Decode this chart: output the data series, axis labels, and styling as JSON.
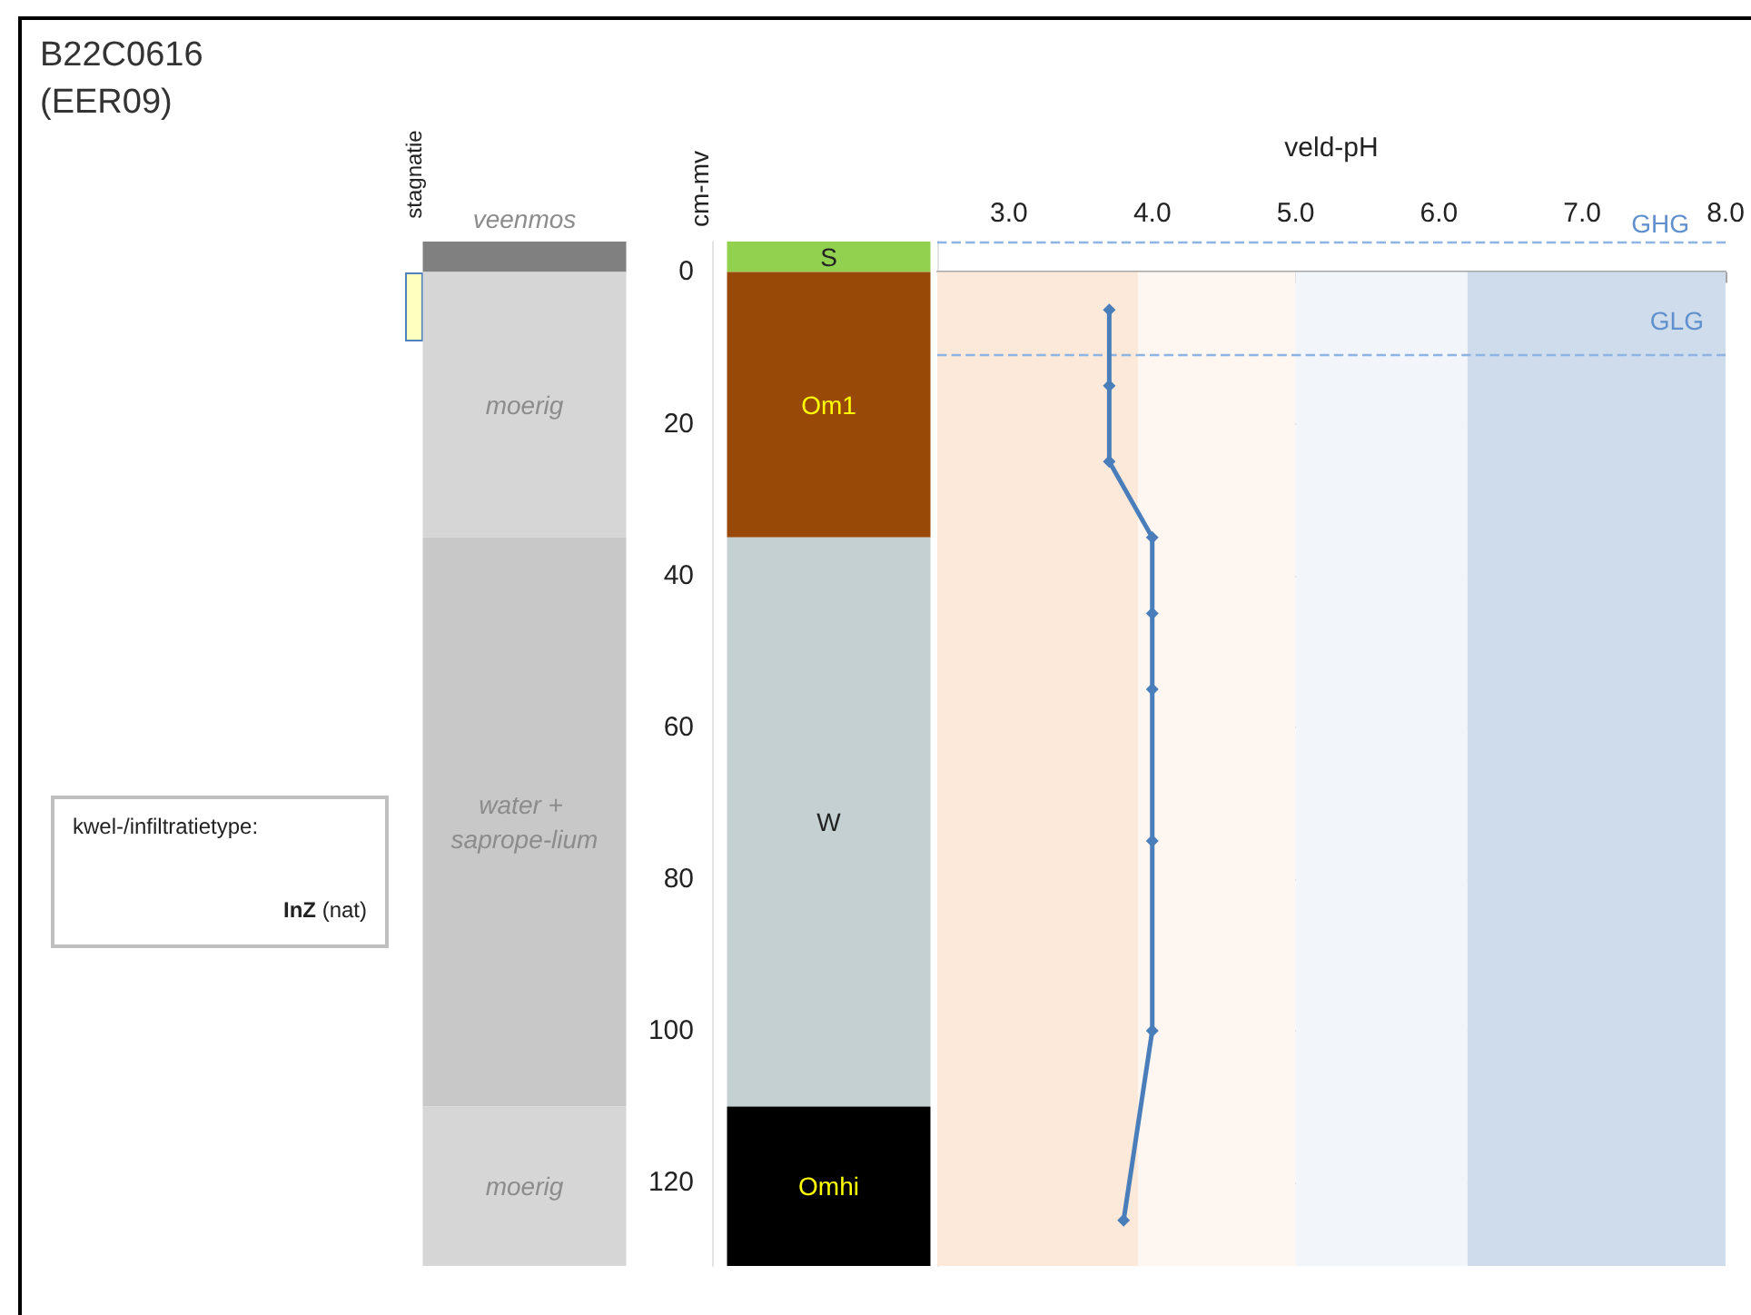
{
  "chart_data": [
    {
      "type": "other",
      "title": "B22C0616",
      "subtitle": "(EER09)",
      "annotations": [
        "stagnatie",
        "kwel-/infiltratietype:",
        "InZ (nat)"
      ]
    },
    {
      "type": "bar",
      "stacked": true,
      "ylabel": "cm-mv",
      "categories": [
        null,
        null
      ],
      "series": [
        {
          "name": "veenmos",
          "color": "#808080",
          "values": [
            -4,
            null
          ]
        },
        {
          "name": "moerig",
          "color": "#d6d6d6",
          "values": [
            35,
            null
          ]
        },
        {
          "name": "water + saprope-lium",
          "color": "#c8c8c8",
          "values": [
            75,
            null
          ]
        },
        {
          "name": "moerig",
          "color": "#d6d6d6",
          "values": [
            21,
            null
          ]
        },
        {
          "name": "S",
          "color": "#92d050",
          "values": [
            null,
            -4
          ]
        },
        {
          "name": "Om1",
          "color": "#984807",
          "values": [
            null,
            35
          ]
        },
        {
          "name": "W",
          "color": "#c5d0d2",
          "values": [
            null,
            75
          ]
        },
        {
          "name": "Omhi",
          "color": "#000000",
          "values": [
            null,
            21
          ]
        }
      ],
      "ylim": [
        131,
        -4
      ],
      "yticks": [
        0,
        20,
        40,
        60,
        80,
        100,
        120
      ],
      "tick_labels": "y"
    },
    {
      "type": "line",
      "xlabel": "veld-pH",
      "color": "#4a7ebb",
      "marker": "diamond",
      "x": [
        3.7,
        3.7,
        3.7,
        4.0,
        4.0,
        4.0,
        4.0,
        4.0,
        3.8
      ],
      "values": [
        5,
        15,
        25,
        35,
        45,
        55,
        75,
        100,
        125
      ],
      "xlim": [
        2.5,
        8
      ],
      "xticks": [
        {
          "value": 3,
          "label": "3.0"
        },
        {
          "value": 4,
          "label": "4.0"
        },
        {
          "value": 5,
          "label": "5.0"
        },
        {
          "value": 6,
          "label": "6.0"
        },
        {
          "value": 7,
          "label": "7.0"
        },
        {
          "value": 8,
          "label": "8.0"
        }
      ],
      "ylim": [
        131,
        -4
      ],
      "yticks": [
        0,
        20,
        40,
        60,
        80,
        100,
        120
      ],
      "tick_labels": "x",
      "grid": "y",
      "bands": [
        {
          "axis": "x",
          "from": 2.5,
          "to": 3.9,
          "color": "#fde9d9"
        },
        {
          "axis": "x",
          "from": 3.9,
          "to": 5.0,
          "color": "#fef6f0"
        },
        {
          "axis": "x",
          "from": 5.0,
          "to": 6.2,
          "color": "#f2f5fa"
        },
        {
          "axis": "x",
          "from": 6.2,
          "to": 8.0,
          "color": "#cfdcec"
        }
      ],
      "ref_lines": [
        {
          "axis": "y",
          "value": -4,
          "label": "GHG",
          "color": "#8db4e2",
          "line_style": "dashed"
        },
        {
          "axis": "y",
          "value": 11,
          "label": "GLG",
          "color": "#8db4e2",
          "line_style": "dashed"
        }
      ]
    }
  ]
}
